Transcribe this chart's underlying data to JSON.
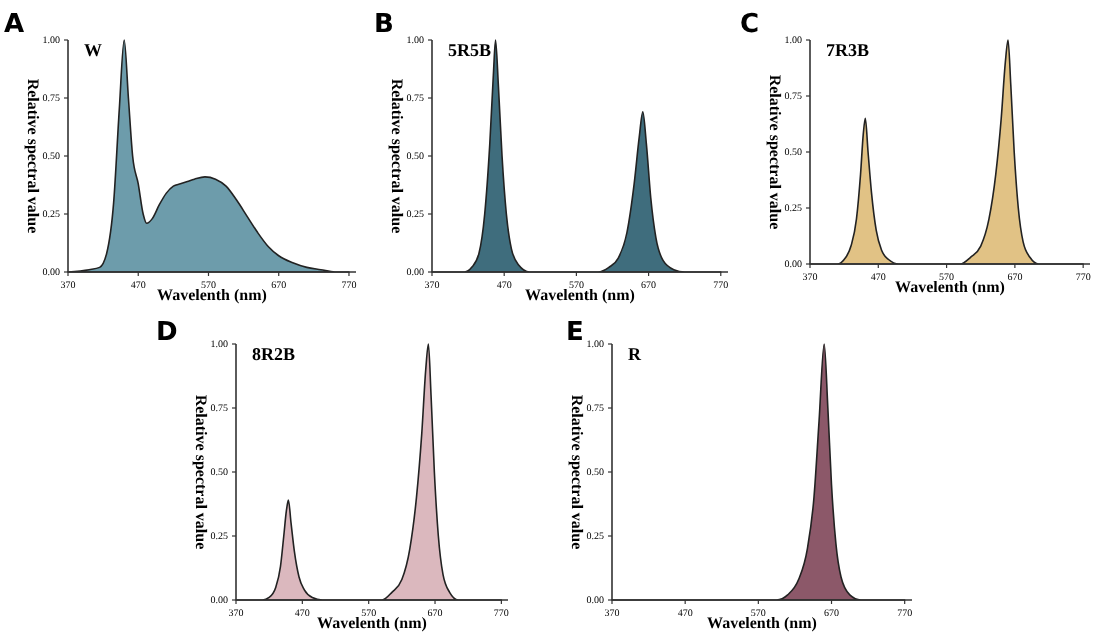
{
  "chart_data": [
    {
      "type": "area",
      "title": "A",
      "subtitle": "W",
      "xlabel": "Wavelenth (nm)",
      "ylabel": "Relative spectral value",
      "xlim": [
        370,
        780
      ],
      "ylim": [
        0,
        1
      ],
      "xticks": [
        370,
        470,
        570,
        670,
        770
      ],
      "yticks": [
        {
          "value": 0,
          "label": "0.00"
        },
        {
          "value": 0.25,
          "label": "0.25"
        },
        {
          "value": 0.5,
          "label": "0.50"
        },
        {
          "value": 0.75,
          "label": "0.75"
        },
        {
          "value": 1,
          "label": "1.00"
        }
      ],
      "series": [
        {
          "color": "#6d9cab",
          "x": [
            370,
            400,
            415,
            425,
            435,
            443,
            450,
            456,
            462,
            470,
            477,
            482,
            490,
            500,
            510,
            520,
            530,
            540,
            550,
            565,
            580,
            595,
            610,
            625,
            640,
            655,
            670,
            690,
            710,
            730,
            750,
            770
          ],
          "values": [
            0,
            0.01,
            0.02,
            0.08,
            0.3,
            0.7,
            1,
            0.75,
            0.5,
            0.38,
            0.25,
            0.21,
            0.23,
            0.29,
            0.34,
            0.37,
            0.38,
            0.39,
            0.4,
            0.41,
            0.4,
            0.37,
            0.31,
            0.24,
            0.17,
            0.11,
            0.07,
            0.04,
            0.02,
            0.01,
            0,
            0
          ]
        }
      ]
    },
    {
      "type": "area",
      "title": "B",
      "subtitle": "5R5B",
      "xlabel": "Wavelenth (nm)",
      "ylabel": "Relative spectral value",
      "xlim": [
        370,
        780
      ],
      "ylim": [
        0,
        1
      ],
      "xticks": [
        370,
        470,
        570,
        670,
        770
      ],
      "yticks": [
        {
          "value": 0,
          "label": "0.00"
        },
        {
          "value": 0.25,
          "label": "0.25"
        },
        {
          "value": 0.5,
          "label": "0.50"
        },
        {
          "value": 0.75,
          "label": "0.75"
        },
        {
          "value": 1,
          "label": "1.00"
        }
      ],
      "series": [
        {
          "color": "#3f6d7d",
          "x": [
            370,
            415,
            425,
            435,
            443,
            450,
            455,
            458,
            462,
            467,
            473,
            480,
            490,
            505,
            600,
            615,
            628,
            640,
            650,
            657,
            662,
            667,
            673,
            680,
            690,
            705,
            720,
            770
          ],
          "values": [
            0,
            0,
            0.02,
            0.08,
            0.25,
            0.55,
            0.85,
            1,
            0.8,
            0.5,
            0.25,
            0.1,
            0.03,
            0,
            0,
            0.02,
            0.06,
            0.17,
            0.38,
            0.58,
            0.69,
            0.55,
            0.32,
            0.15,
            0.05,
            0.01,
            0,
            0
          ]
        }
      ]
    },
    {
      "type": "area",
      "title": "C",
      "subtitle": "7R3B",
      "xlabel": "Wavelenth (nm)",
      "ylabel": "Relative spectral value",
      "xlim": [
        370,
        780
      ],
      "ylim": [
        0,
        1
      ],
      "xticks": [
        370,
        470,
        570,
        670,
        770
      ],
      "yticks": [
        {
          "value": 0,
          "label": "0.00"
        },
        {
          "value": 0.25,
          "label": "0.25"
        },
        {
          "value": 0.5,
          "label": "0.50"
        },
        {
          "value": 0.75,
          "label": "0.75"
        },
        {
          "value": 1,
          "label": "1.00"
        }
      ],
      "series": [
        {
          "color": "#e1c285",
          "x": [
            370,
            410,
            420,
            430,
            438,
            444,
            448,
            451,
            455,
            460,
            467,
            475,
            485,
            500,
            590,
            605,
            620,
            632,
            642,
            650,
            656,
            660,
            664,
            669,
            675,
            682,
            692,
            705,
            770
          ],
          "values": [
            0,
            0,
            0.02,
            0.08,
            0.2,
            0.4,
            0.58,
            0.65,
            0.5,
            0.32,
            0.15,
            0.06,
            0.02,
            0,
            0,
            0.03,
            0.08,
            0.2,
            0.4,
            0.65,
            0.9,
            1,
            0.8,
            0.5,
            0.25,
            0.1,
            0.03,
            0,
            0
          ]
        }
      ]
    },
    {
      "type": "area",
      "title": "D",
      "subtitle": "8R2B",
      "xlabel": "Wavelenth (nm)",
      "ylabel": "Relative spectral value",
      "xlim": [
        370,
        780
      ],
      "ylim": [
        0,
        1
      ],
      "xticks": [
        370,
        470,
        570,
        670,
        770
      ],
      "yticks": [
        {
          "value": 0,
          "label": "0.00"
        },
        {
          "value": 0.25,
          "label": "0.25"
        },
        {
          "value": 0.5,
          "label": "0.50"
        },
        {
          "value": 0.75,
          "label": "0.75"
        },
        {
          "value": 1,
          "label": "1.00"
        }
      ],
      "series": [
        {
          "color": "#dbb8be",
          "x": [
            370,
            410,
            420,
            430,
            437,
            442,
            446,
            449,
            453,
            458,
            465,
            473,
            485,
            500,
            590,
            605,
            620,
            632,
            642,
            650,
            656,
            660,
            664,
            669,
            675,
            682,
            692,
            705,
            770
          ],
          "values": [
            0,
            0,
            0.01,
            0.05,
            0.13,
            0.25,
            0.35,
            0.39,
            0.3,
            0.19,
            0.09,
            0.04,
            0.01,
            0,
            0,
            0.03,
            0.08,
            0.2,
            0.4,
            0.65,
            0.9,
            1,
            0.8,
            0.5,
            0.25,
            0.1,
            0.03,
            0,
            0
          ]
        }
      ]
    },
    {
      "type": "area",
      "title": "E",
      "subtitle": "R",
      "xlabel": "Wavelenth (nm)",
      "ylabel": "Relative spectral value",
      "xlim": [
        370,
        780
      ],
      "ylim": [
        0,
        1
      ],
      "xticks": [
        370,
        470,
        570,
        670,
        770
      ],
      "yticks": [
        {
          "value": 0,
          "label": "0.00"
        },
        {
          "value": 0.25,
          "label": "0.25"
        },
        {
          "value": 0.5,
          "label": "0.50"
        },
        {
          "value": 0.75,
          "label": "0.75"
        },
        {
          "value": 1,
          "label": "1.00"
        }
      ],
      "series": [
        {
          "color": "#8c5869",
          "x": [
            370,
            595,
            610,
            625,
            637,
            646,
            653,
            660,
            665,
            670,
            676,
            683,
            695,
            710,
            770
          ],
          "values": [
            0,
            0,
            0.02,
            0.08,
            0.2,
            0.4,
            0.7,
            1,
            0.75,
            0.45,
            0.22,
            0.09,
            0.02,
            0,
            0
          ]
        }
      ]
    }
  ]
}
